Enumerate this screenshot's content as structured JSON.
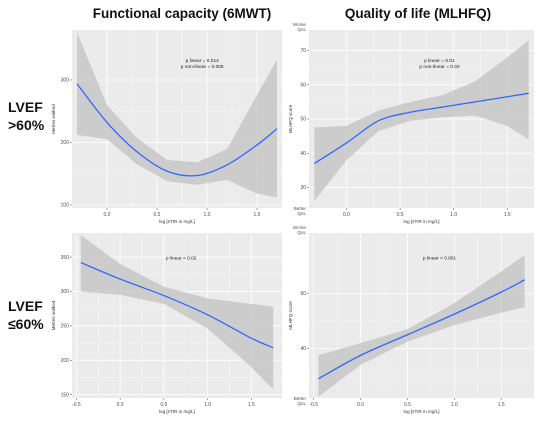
{
  "column_headers": [
    "Functional capacity (6MWT)",
    "Quality of life (MLHFQ)"
  ],
  "row_headers": [
    {
      "line1": "LVEF",
      "line2": ">60%"
    },
    {
      "line1": "LVEF",
      "line2": "≤60%"
    }
  ],
  "colors": {
    "panel_background": "#ebebeb",
    "grid": "#ffffff",
    "band": "#c7c7c7",
    "line": "#3366ff"
  },
  "chart_data": [
    {
      "type": "line",
      "id": "top-left",
      "xlabel": "log [sTIR in mg/L]",
      "ylabel": "Metres walked",
      "xlim": [
        -0.35,
        1.75
      ],
      "ylim": [
        95,
        380
      ],
      "x_ticks": [
        0.0,
        0.5,
        1.0,
        1.5
      ],
      "x_tick_labels": [
        "0.0",
        "0.5",
        "1.0",
        "1.5"
      ],
      "y_ticks": [
        100,
        200,
        300
      ],
      "y_tick_labels": [
        "100",
        "200",
        "300"
      ],
      "annotations": [
        "p linear = 0.014",
        "p non-linear = 0.005"
      ],
      "series": [
        {
          "x": [
            -0.3,
            0.0,
            0.3,
            0.6,
            0.9,
            1.2,
            1.5,
            1.7
          ],
          "y": [
            294,
            232,
            185,
            154,
            147,
            164,
            196,
            222
          ],
          "lower": [
            212,
            205,
            165,
            138,
            132,
            140,
            118,
            112
          ],
          "upper": [
            376,
            260,
            207,
            172,
            168,
            189,
            276,
            333
          ]
        }
      ]
    },
    {
      "type": "line",
      "id": "top-right",
      "xlabel": "log [sTIR in mg/L]",
      "ylabel": "MLHFQ score",
      "xlim": [
        -0.35,
        1.75
      ],
      "ylim": [
        24,
        76
      ],
      "x_ticks": [
        0.0,
        0.5,
        1.0,
        1.5
      ],
      "x_tick_labels": [
        "0.0",
        "0.5",
        "1.0",
        "1.5"
      ],
      "y_ticks": [
        30,
        40,
        50,
        60,
        70
      ],
      "y_tick_labels": [
        "30",
        "40",
        "50",
        "60",
        "70"
      ],
      "y_top_label": [
        "Worse",
        "QoL"
      ],
      "y_bottom_label": [
        "Better",
        "QoL"
      ],
      "annotations": [
        "p linear = 0.01",
        "p non-linear = 0.03"
      ],
      "series": [
        {
          "x": [
            -0.3,
            0.0,
            0.3,
            0.6,
            0.9,
            1.2,
            1.5,
            1.7
          ],
          "y": [
            37,
            43,
            49.5,
            52,
            53.5,
            55,
            56.5,
            57.5
          ],
          "lower": [
            26,
            38,
            46.5,
            49.5,
            50.5,
            51,
            48,
            44
          ],
          "upper": [
            47.5,
            48,
            52.5,
            55,
            57,
            61,
            68,
            73
          ]
        }
      ]
    },
    {
      "type": "line",
      "id": "bottom-left",
      "xlabel": "log [sTIR in mg/L]",
      "ylabel": "Metres walked",
      "xlim": [
        -0.55,
        1.85
      ],
      "ylim": [
        145,
        385
      ],
      "x_ticks": [
        -0.5,
        0.0,
        0.5,
        1.0,
        1.5
      ],
      "x_tick_labels": [
        "-0.5",
        "0.0",
        "0.5",
        "1.0",
        "1.5"
      ],
      "y_ticks": [
        150,
        200,
        250,
        300,
        350
      ],
      "y_tick_labels": [
        "150",
        "200",
        "250",
        "300",
        "350"
      ],
      "annotations": [
        "p linear < 0.02"
      ],
      "series": [
        {
          "x": [
            -0.45,
            0.0,
            0.5,
            1.0,
            1.5,
            1.75
          ],
          "y": [
            342,
            318,
            294,
            266,
            232,
            218
          ],
          "lower": [
            300,
            295,
            282,
            246,
            190,
            157
          ],
          "upper": [
            382,
            340,
            307,
            290,
            282,
            278
          ]
        }
      ]
    },
    {
      "type": "line",
      "id": "bottom-right",
      "xlabel": "log [sTIR in mg/L]",
      "ylabel": "MLHFQ score",
      "xlim": [
        -0.55,
        1.85
      ],
      "ylim": [
        22,
        82
      ],
      "x_ticks": [
        -0.5,
        0.0,
        0.5,
        1.0,
        1.5
      ],
      "x_tick_labels": [
        "-0.5",
        "0.0",
        "0.5",
        "1.0",
        "1.5"
      ],
      "y_ticks": [
        20,
        40,
        60
      ],
      "y_tick_labels": [
        "20",
        "40",
        "60"
      ],
      "y_top_label": [
        "Worse",
        "QoL"
      ],
      "y_bottom_label": [
        "Better",
        "QoL"
      ],
      "annotations": [
        "p linear < 0.001"
      ],
      "series": [
        {
          "x": [
            -0.45,
            0.0,
            0.5,
            1.0,
            1.5,
            1.75
          ],
          "y": [
            29,
            37.5,
            45,
            52.5,
            60.5,
            65
          ],
          "lower": [
            22.5,
            34,
            42.5,
            48.5,
            53,
            55
          ],
          "upper": [
            37.5,
            42,
            47,
            56.5,
            68,
            74
          ]
        }
      ]
    }
  ]
}
